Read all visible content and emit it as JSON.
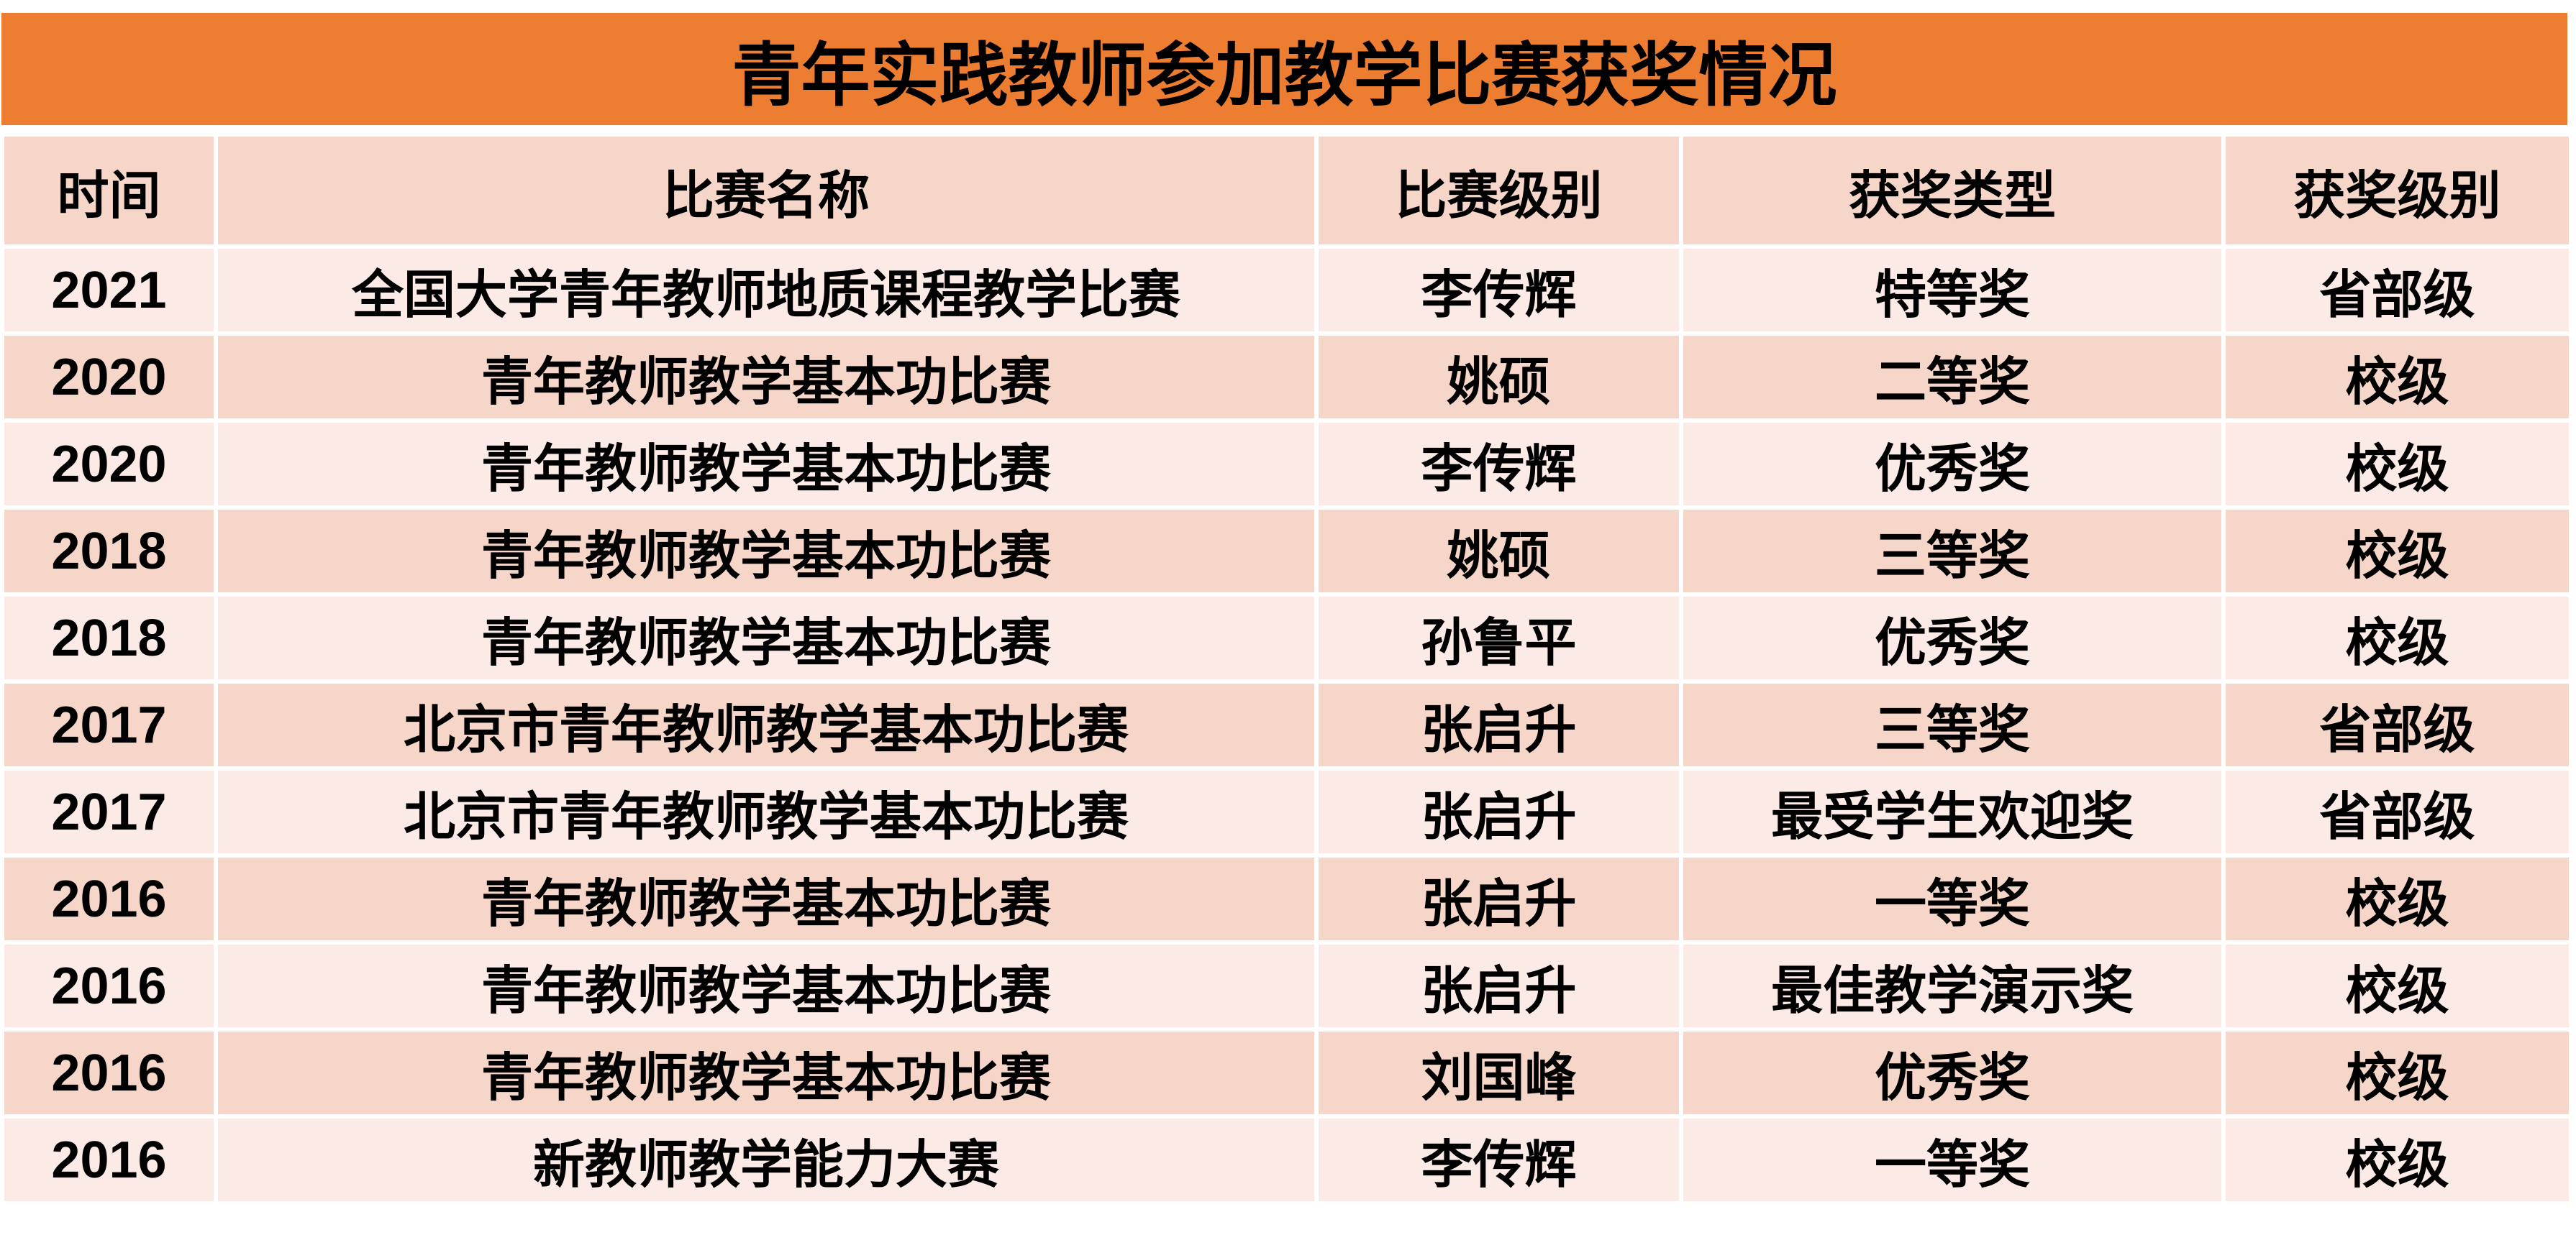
{
  "title": "青年实践教师参加教学比赛获奖情况",
  "colors": {
    "title_bg": "#ED7D31",
    "header_bg": "#F7D6CA",
    "row_light": "#FBEAE5",
    "row_dark": "#F7D6CA"
  },
  "headers": [
    "时间",
    "比赛名称",
    "比赛级别",
    "获奖类型",
    "获奖级别"
  ],
  "rows": [
    [
      "2021",
      "全国大学青年教师地质课程教学比赛",
      "李传辉",
      "特等奖",
      "省部级"
    ],
    [
      "2020",
      "青年教师教学基本功比赛",
      "姚硕",
      "二等奖",
      "校级"
    ],
    [
      "2020",
      "青年教师教学基本功比赛",
      "李传辉",
      "优秀奖",
      "校级"
    ],
    [
      "2018",
      "青年教师教学基本功比赛",
      "姚硕",
      "三等奖",
      "校级"
    ],
    [
      "2018",
      "青年教师教学基本功比赛",
      "孙鲁平",
      "优秀奖",
      "校级"
    ],
    [
      "2017",
      "北京市青年教师教学基本功比赛",
      "张启升",
      "三等奖",
      "省部级"
    ],
    [
      "2017",
      "北京市青年教师教学基本功比赛",
      "张启升",
      "最受学生欢迎奖",
      "省部级"
    ],
    [
      "2016",
      "青年教师教学基本功比赛",
      "张启升",
      "一等奖",
      "校级"
    ],
    [
      "2016",
      "青年教师教学基本功比赛",
      "张启升",
      "最佳教学演示奖",
      "校级"
    ],
    [
      "2016",
      "青年教师教学基本功比赛",
      "刘国峰",
      "优秀奖",
      "校级"
    ],
    [
      "2016",
      "新教师教学能力大赛",
      "李传辉",
      "一等奖",
      "校级"
    ]
  ]
}
